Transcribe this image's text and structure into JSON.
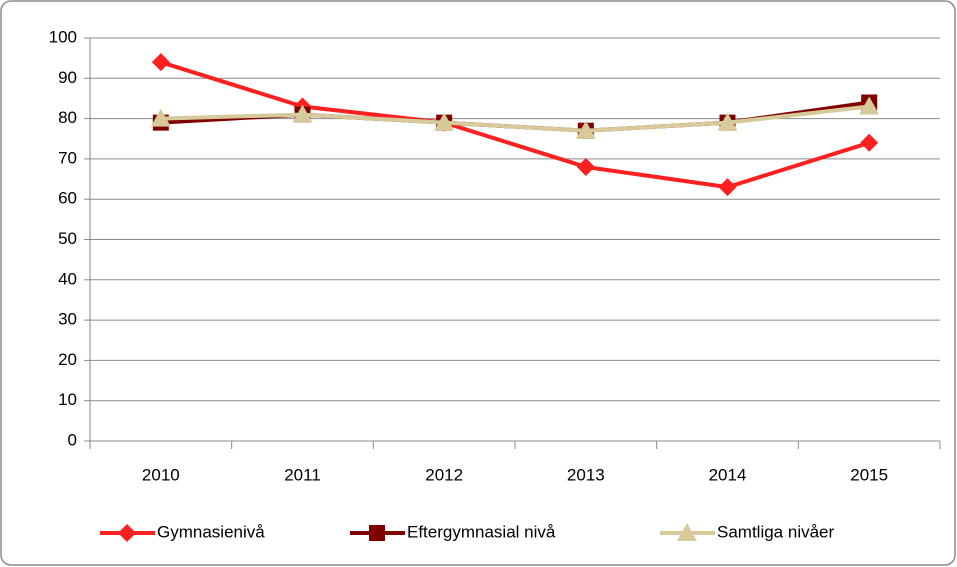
{
  "chart_data": {
    "type": "line",
    "categories": [
      "2010",
      "2011",
      "2012",
      "2013",
      "2014",
      "2015"
    ],
    "series": [
      {
        "name": "Gymnasienivå",
        "color": "#ff2020",
        "marker": "diamond",
        "values": [
          94,
          83,
          79,
          68,
          63,
          74
        ]
      },
      {
        "name": "Eftergymnasial nivå",
        "color": "#800000",
        "marker": "square",
        "values": [
          79,
          81,
          79,
          77,
          79,
          84
        ]
      },
      {
        "name": "Samtliga nivåer",
        "color": "#d6c99a",
        "marker": "triangle",
        "values": [
          80,
          81,
          79,
          77,
          79,
          83
        ]
      }
    ],
    "ylim": [
      0,
      100
    ],
    "yticks": [
      0,
      10,
      20,
      30,
      40,
      50,
      60,
      70,
      80,
      90,
      100
    ],
    "grid": true,
    "legend": "bottom"
  }
}
